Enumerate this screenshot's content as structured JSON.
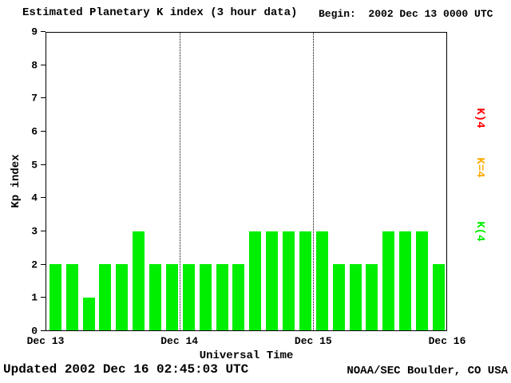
{
  "header": {
    "begin_label": "Begin:  2002 Dec 13 0000 UTC"
  },
  "footer": {
    "updated": "Updated 2002 Dec 16 02:45:03 UTC",
    "source": "NOAA/SEC Boulder, CO USA"
  },
  "legend": [
    {
      "label": "K)4",
      "color": "#ff0000"
    },
    {
      "label": "K=4",
      "color": "#ffaa00"
    },
    {
      "label": "K(4",
      "color": "#00ee00"
    }
  ],
  "chart_data": {
    "type": "bar",
    "title": "Estimated Planetary K index (3 hour data)",
    "xlabel": "Universal Time",
    "ylabel": "Kp index",
    "ylim": [
      0,
      9
    ],
    "grid": "vertical-dotted-at-day-boundaries",
    "legend_position": "right-rotated",
    "bar_color": "#00ee00",
    "bar_interval_hours": 3,
    "y_ticks": [
      0,
      1,
      2,
      3,
      4,
      5,
      6,
      7,
      8,
      9
    ],
    "x_ticks": [
      "Dec 13",
      "Dec 14",
      "Dec 15",
      "Dec 16"
    ],
    "values": [
      2,
      2,
      1,
      2,
      2,
      3,
      2,
      2,
      2,
      2,
      2,
      2,
      3,
      3,
      3,
      3,
      3,
      2,
      2,
      2,
      3,
      3,
      3,
      2
    ]
  }
}
